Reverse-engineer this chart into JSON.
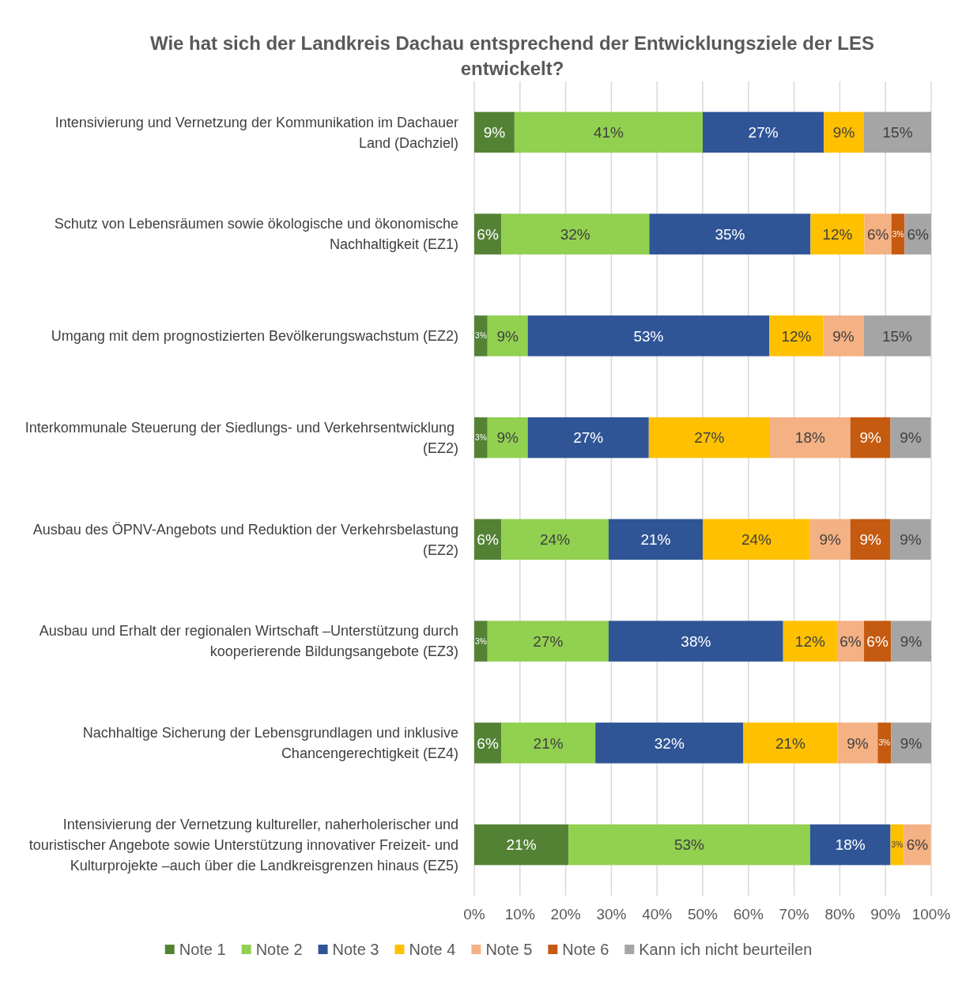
{
  "chart_data": {
    "type": "bar",
    "orientation": "horizontal",
    "stacked": true,
    "title": "Wie hat sich der Landkreis Dachau entsprechend der Entwicklungsziele der LES entwickelt?",
    "categories": [
      "Intensivierung und Vernetzung der Kommunikation im Dachauer Land (Dachziel)",
      "Schutz von Lebensräumen sowie ökologische und ökonomische Nachhaltigkeit (EZ1)",
      "Umgang mit dem prognostizierten Bevölkerungswachstum (EZ2)",
      "Interkommunale Steuerung der Siedlungs- und Verkehrsentwicklung  (EZ2)",
      "Ausbau des ÖPNV-Angebots und Reduktion der Verkehrsbelastung (EZ2)",
      "Ausbau und Erhalt der regionalen Wirtschaft –Unterstützung durch kooperierende Bildungsangebote (EZ3)",
      "Nachhaltige Sicherung der Lebensgrundlagen und inklusive Chancengerechtigkeit (EZ4)",
      "Intensivierung der Vernetzung kultureller, naherholerischer und touristischer Angebote sowie Unterstützung innovativer Freizeit- und Kulturprojekte –auch über die Landkreisgrenzen hinaus (EZ5)"
    ],
    "series": [
      {
        "name": "Note 1",
        "color": "#548235",
        "values": [
          8.8,
          5.9,
          2.9,
          2.9,
          5.9,
          2.9,
          5.9,
          20.6
        ],
        "value_labels": [
          "9%",
          "6%",
          "3%",
          "3%",
          "6%",
          "3%",
          "6%",
          "21%"
        ]
      },
      {
        "name": "Note 2",
        "color": "#92d050",
        "values": [
          41.2,
          32.4,
          8.8,
          8.8,
          23.5,
          26.5,
          20.6,
          52.9
        ],
        "value_labels": [
          "41%",
          "32%",
          "9%",
          "9%",
          "24%",
          "27%",
          "21%",
          "53%"
        ]
      },
      {
        "name": "Note 3",
        "color": "#2f5597",
        "values": [
          26.5,
          35.3,
          52.9,
          26.5,
          20.6,
          38.2,
          32.4,
          17.6
        ],
        "value_labels": [
          "27%",
          "35%",
          "53%",
          "27%",
          "21%",
          "38%",
          "32%",
          "18%"
        ]
      },
      {
        "name": "Note 4",
        "color": "#ffc000",
        "values": [
          8.8,
          11.8,
          11.8,
          26.5,
          23.5,
          11.8,
          20.6,
          2.9
        ],
        "value_labels": [
          "9%",
          "12%",
          "12%",
          "27%",
          "24%",
          "12%",
          "21%",
          "3%"
        ]
      },
      {
        "name": "Note 5",
        "color": "#f4b183",
        "values": [
          null,
          5.9,
          8.8,
          17.6,
          8.8,
          5.9,
          8.8,
          5.9
        ],
        "value_labels": [
          null,
          "6%",
          "9%",
          "18%",
          "9%",
          "6%",
          "9%",
          "6%"
        ]
      },
      {
        "name": "Note 6",
        "color": "#c55a11",
        "values": [
          null,
          2.9,
          null,
          8.8,
          8.8,
          5.9,
          2.9,
          null
        ],
        "value_labels": [
          null,
          "3%",
          null,
          "9%",
          "9%",
          "6%",
          "3%",
          null
        ]
      },
      {
        "name": "Kann ich nicht beurteilen",
        "color": "#a5a5a5",
        "values": [
          14.7,
          5.8,
          14.7,
          8.8,
          8.8,
          8.8,
          8.8,
          null
        ],
        "value_labels": [
          "15%",
          "6%",
          "15%",
          "9%",
          "9%",
          "9%",
          "9%",
          null
        ]
      }
    ],
    "xlim": [
      0,
      100
    ],
    "xticks": [
      {
        "value": 0,
        "label": "0%"
      },
      {
        "value": 10,
        "label": "10%"
      },
      {
        "value": 20,
        "label": "20%"
      },
      {
        "value": 30,
        "label": "30%"
      },
      {
        "value": 40,
        "label": "40%"
      },
      {
        "value": 50,
        "label": "50%"
      },
      {
        "value": 60,
        "label": "60%"
      },
      {
        "value": 70,
        "label": "70%"
      },
      {
        "value": 80,
        "label": "80%"
      },
      {
        "value": 90,
        "label": "90%"
      },
      {
        "value": 100,
        "label": "100%"
      }
    ],
    "grid": "x",
    "legend": "bottom"
  }
}
